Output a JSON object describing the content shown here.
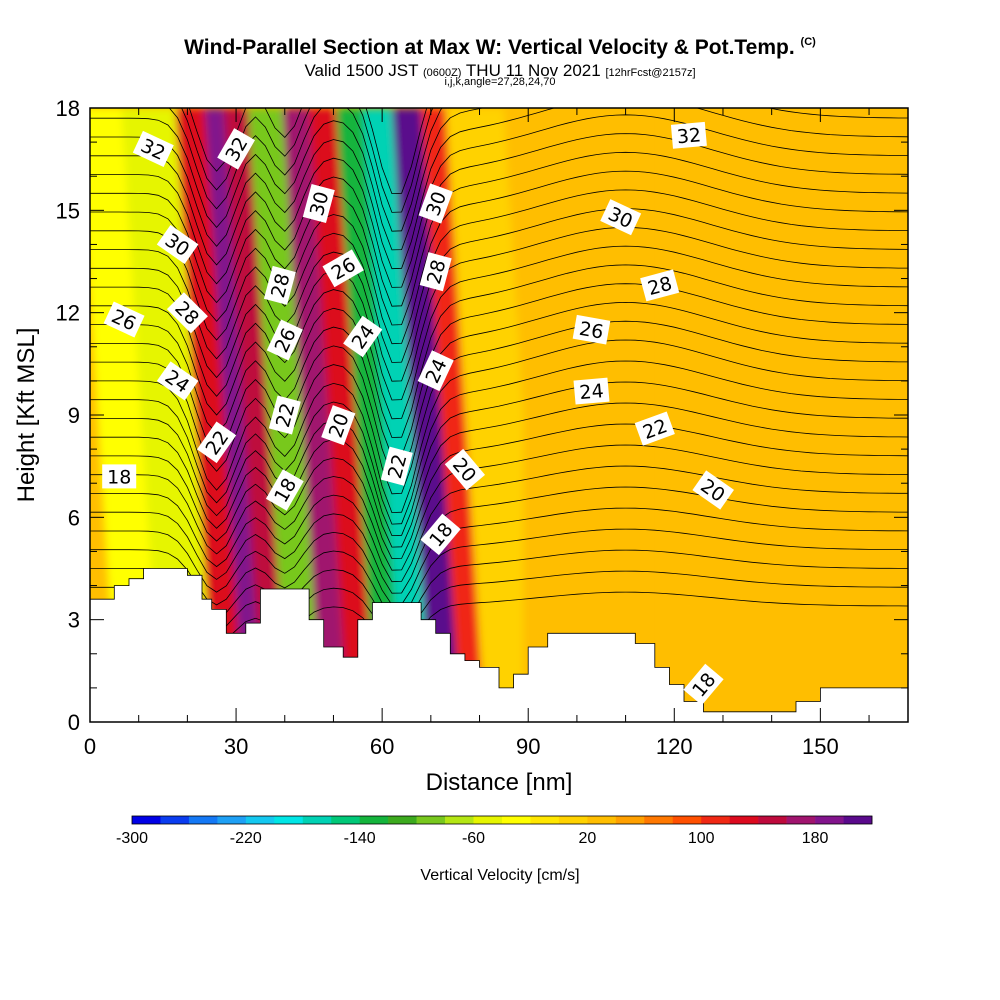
{
  "title": {
    "main": "Wind-Parallel Section at Max W: Vertical Velocity & Pot.Temp.",
    "copyright": "(C)",
    "valid_prefix": "Valid 1500 JST",
    "valid_utc": "(0600Z)",
    "valid_date": "THU 11 Nov 2021",
    "forecast": "[12hrFcst@2157z]",
    "params": "i,j,k,angle=27,28,24,70"
  },
  "chart_data": {
    "type": "heatmap",
    "xlabel": "Distance [nm]",
    "ylabel": "Height [Kft MSL]",
    "xlim": [
      0,
      168
    ],
    "ylim": [
      0,
      18
    ],
    "x_ticks": [
      0,
      30,
      60,
      90,
      120,
      150
    ],
    "y_ticks": [
      0,
      3,
      6,
      9,
      12,
      15,
      18
    ],
    "colorbar": {
      "label": "Vertical Velocity [cm/s]",
      "tick_labels": [
        -300,
        -220,
        -140,
        -60,
        20,
        100,
        180
      ],
      "min": -300,
      "max": 220,
      "colors": [
        "#0000e6",
        "#0a3cf0",
        "#1478f5",
        "#1ea0f5",
        "#14c8f0",
        "#00e6e6",
        "#00d2b4",
        "#00c878",
        "#14b43c",
        "#3caa1e",
        "#78c81e",
        "#b4e614",
        "#e6f500",
        "#ffff00",
        "#ffe600",
        "#ffd200",
        "#ffbe00",
        "#ffa000",
        "#ff7800",
        "#ff5000",
        "#f02814",
        "#dc0a1e",
        "#be0a3c",
        "#a0146e",
        "#82148c",
        "#5a0a8c"
      ]
    },
    "terrain_kft": [
      [
        0,
        3.6
      ],
      [
        5,
        3.6
      ],
      [
        5,
        4
      ],
      [
        8,
        4
      ],
      [
        8,
        4.2
      ],
      [
        11,
        4.2
      ],
      [
        11,
        4.5
      ],
      [
        20,
        4.5
      ],
      [
        20,
        4.3
      ],
      [
        23,
        4.3
      ],
      [
        23,
        3.6
      ],
      [
        25,
        3.6
      ],
      [
        25,
        3.3
      ],
      [
        28,
        3.3
      ],
      [
        28,
        2.6
      ],
      [
        32,
        2.6
      ],
      [
        32,
        2.9
      ],
      [
        35,
        2.9
      ],
      [
        35,
        3.9
      ],
      [
        45,
        3.9
      ],
      [
        45,
        3.0
      ],
      [
        48,
        3.0
      ],
      [
        48,
        2.2
      ],
      [
        52,
        2.2
      ],
      [
        52,
        1.9
      ],
      [
        55,
        1.9
      ],
      [
        55,
        3.0
      ],
      [
        58,
        3.0
      ],
      [
        58,
        3.5
      ],
      [
        68,
        3.5
      ],
      [
        68,
        3.0
      ],
      [
        71,
        3.0
      ],
      [
        71,
        2.6
      ],
      [
        74,
        2.6
      ],
      [
        74,
        2.0
      ],
      [
        77,
        2.0
      ],
      [
        77,
        1.8
      ],
      [
        80,
        1.8
      ],
      [
        80,
        1.6
      ],
      [
        84,
        1.6
      ],
      [
        84,
        1.0
      ],
      [
        87,
        1.0
      ],
      [
        87,
        1.4
      ],
      [
        90,
        1.4
      ],
      [
        90,
        2.2
      ],
      [
        94,
        2.2
      ],
      [
        94,
        2.6
      ],
      [
        112,
        2.6
      ],
      [
        112,
        2.3
      ],
      [
        116,
        2.3
      ],
      [
        116,
        1.6
      ],
      [
        119,
        1.6
      ],
      [
        119,
        1.1
      ],
      [
        122,
        1.1
      ],
      [
        122,
        0.6
      ],
      [
        126,
        0.6
      ],
      [
        126,
        0.3
      ],
      [
        145,
        0.3
      ],
      [
        145,
        0.6
      ],
      [
        150,
        0.6
      ],
      [
        150,
        1.0
      ],
      [
        168,
        1.0
      ]
    ],
    "velocity_bands": [
      {
        "x": 3,
        "value": -40
      },
      {
        "x": 18,
        "value": -50
      },
      {
        "x": 25,
        "value": 120
      },
      {
        "x": 30,
        "value": 180
      },
      {
        "x": 33,
        "value": 140
      },
      {
        "x": 40,
        "value": -90
      },
      {
        "x": 47,
        "value": 170
      },
      {
        "x": 51,
        "value": 120
      },
      {
        "x": 58,
        "value": -130
      },
      {
        "x": 62,
        "value": -180
      },
      {
        "x": 70,
        "value": 200
      },
      {
        "x": 74,
        "value": 100
      },
      {
        "x": 80,
        "value": 10
      },
      {
        "x": 98,
        "value": 30
      },
      {
        "x": 136,
        "value": 30
      }
    ],
    "contour_labels": [
      {
        "text": "32",
        "x": 13,
        "y": 16.8,
        "rot": 25
      },
      {
        "text": "32",
        "x": 30,
        "y": 16.8,
        "rot": -60
      },
      {
        "text": "32",
        "x": 123,
        "y": 17.2,
        "rot": -5
      },
      {
        "text": "30",
        "x": 18,
        "y": 14.0,
        "rot": 35
      },
      {
        "text": "30",
        "x": 47,
        "y": 15.2,
        "rot": -75
      },
      {
        "text": "30",
        "x": 71,
        "y": 15.2,
        "rot": -70
      },
      {
        "text": "30",
        "x": 109,
        "y": 14.8,
        "rot": 25
      },
      {
        "text": "28",
        "x": 39,
        "y": 12.8,
        "rot": -75
      },
      {
        "text": "28",
        "x": 71,
        "y": 13.2,
        "rot": -75
      },
      {
        "text": "28",
        "x": 117,
        "y": 12.8,
        "rot": -15
      },
      {
        "text": "28",
        "x": 20,
        "y": 12.0,
        "rot": 45
      },
      {
        "text": "26",
        "x": 7,
        "y": 11.8,
        "rot": 25
      },
      {
        "text": "26",
        "x": 52,
        "y": 13.3,
        "rot": -30
      },
      {
        "text": "26",
        "x": 40,
        "y": 11.2,
        "rot": -65
      },
      {
        "text": "26",
        "x": 103,
        "y": 11.5,
        "rot": 10
      },
      {
        "text": "24",
        "x": 18,
        "y": 10.0,
        "rot": 35
      },
      {
        "text": "24",
        "x": 56,
        "y": 11.3,
        "rot": -55
      },
      {
        "text": "24",
        "x": 71,
        "y": 10.3,
        "rot": -65
      },
      {
        "text": "24",
        "x": 103,
        "y": 9.7,
        "rot": -5
      },
      {
        "text": "22",
        "x": 26,
        "y": 8.2,
        "rot": -55
      },
      {
        "text": "22",
        "x": 40,
        "y": 9.0,
        "rot": -75
      },
      {
        "text": "22",
        "x": 63,
        "y": 7.5,
        "rot": -75
      },
      {
        "text": "22",
        "x": 116,
        "y": 8.6,
        "rot": -20
      },
      {
        "text": "20",
        "x": 51,
        "y": 8.7,
        "rot": -70
      },
      {
        "text": "20",
        "x": 77,
        "y": 7.4,
        "rot": 50
      },
      {
        "text": "20",
        "x": 128,
        "y": 6.8,
        "rot": 35
      },
      {
        "text": "18",
        "x": 6,
        "y": 7.2,
        "rot": 0
      },
      {
        "text": "18",
        "x": 40,
        "y": 6.8,
        "rot": -60
      },
      {
        "text": "18",
        "x": 72,
        "y": 5.5,
        "rot": -50
      },
      {
        "text": "18",
        "x": 126,
        "y": 1.1,
        "rot": -50
      }
    ]
  }
}
